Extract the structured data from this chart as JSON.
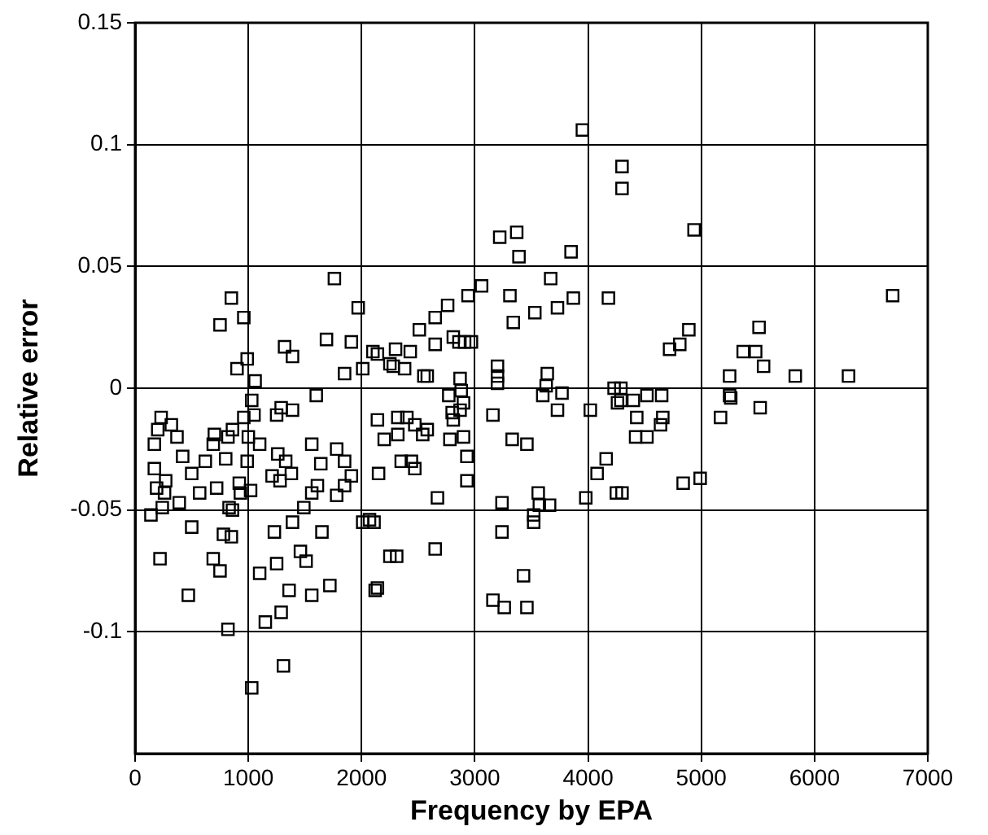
{
  "chart_data": {
    "type": "scatter",
    "xlabel": "Frequency by EPA",
    "ylabel": "Relative error",
    "xlim": [
      0,
      7000
    ],
    "xticks": [
      0,
      1000,
      2000,
      3000,
      4000,
      5000,
      6000,
      7000
    ],
    "ylim": [
      -0.15,
      0.15
    ],
    "yticks": [
      -0.1,
      -0.05,
      0,
      0.05,
      0.1,
      0.15
    ],
    "grid": true,
    "marker": "square",
    "legend": false,
    "series": [
      {
        "color": "#000000",
        "x": [
          4936,
          4300,
          4300,
          6690,
          5510,
          4890,
          4810,
          4720,
          5370,
          5480,
          5550,
          5250,
          5830,
          6300,
          5250,
          5260,
          5520,
          5170,
          4290,
          4290,
          4400,
          4520,
          4650,
          4430,
          4660,
          4640,
          4420,
          4520,
          4840,
          4990,
          4300,
          3850,
          3390,
          3220,
          3370,
          3060,
          2940,
          2760,
          2650,
          2510,
          2650,
          2810,
          2860,
          2910,
          2970,
          2300,
          2430,
          2250,
          2380,
          2550,
          2580,
          2870,
          2140,
          3310,
          3340,
          3530,
          3670,
          3730,
          3870,
          4180,
          3200,
          3200,
          3200,
          3640,
          3630,
          3600,
          3770,
          3730,
          4020,
          4230,
          4260,
          3160,
          3330,
          3460,
          4160,
          4080,
          4250,
          3980,
          3560,
          3570,
          3660,
          3240,
          3520,
          2670,
          2930,
          2930,
          2900,
          2780,
          2900,
          2880,
          2770,
          2870,
          2800,
          2810,
          2320,
          2400,
          2470,
          2580,
          2320,
          2540,
          2350,
          2440,
          2470,
          2150,
          2200,
          3240,
          3520,
          2310,
          2650,
          2140,
          3430,
          3160,
          3260,
          3460,
          140,
          220,
          500,
          780,
          850,
          690,
          750,
          470,
          820,
          1030,
          1310,
          1230,
          1250,
          1100,
          1360,
          1560,
          1720,
          1290,
          1150,
          2120,
          1390,
          1460,
          1510,
          1650,
          1490,
          2010,
          2070,
          830,
          860,
          240,
          390,
          2250,
          1760,
          850,
          960,
          750,
          1970,
          1690,
          1910,
          1320,
          1390,
          990,
          900,
          1060,
          1850,
          2010,
          2100,
          1600,
          1030,
          1290,
          1250,
          1390,
          1050,
          960,
          860,
          820,
          230,
          320,
          370,
          200,
          170,
          700,
          690,
          800,
          1000,
          990,
          1100,
          1260,
          1330,
          1560,
          1640,
          1780,
          1850,
          1910,
          1850,
          1560,
          1610,
          1780,
          1210,
          1280,
          1380,
          1020,
          920,
          930,
          720,
          620,
          500,
          420,
          170,
          270,
          190,
          260,
          570,
          2280,
          2140,
          2110,
          3950
        ],
        "values": [
          0.065,
          0.091,
          0.082,
          0.038,
          0.025,
          0.024,
          0.018,
          0.016,
          0.015,
          0.015,
          0.009,
          0.005,
          0.005,
          0.005,
          -0.003,
          -0.004,
          -0.008,
          -0.012,
          0.0,
          -0.005,
          -0.005,
          -0.003,
          -0.003,
          -0.012,
          -0.012,
          -0.015,
          -0.02,
          -0.02,
          -0.039,
          -0.037,
          -0.043,
          0.056,
          0.054,
          0.062,
          0.064,
          0.042,
          0.038,
          0.034,
          0.029,
          0.024,
          0.018,
          0.021,
          0.019,
          0.019,
          0.019,
          0.016,
          0.015,
          0.01,
          0.008,
          0.005,
          0.005,
          0.004,
          0.014,
          0.038,
          0.027,
          0.031,
          0.045,
          0.033,
          0.037,
          0.037,
          0.009,
          0.005,
          0.002,
          0.006,
          0.001,
          -0.003,
          -0.002,
          -0.009,
          -0.009,
          0.0,
          -0.006,
          -0.011,
          -0.021,
          -0.023,
          -0.029,
          -0.035,
          -0.043,
          -0.045,
          -0.043,
          -0.048,
          -0.048,
          -0.047,
          -0.052,
          -0.045,
          -0.028,
          -0.038,
          -0.02,
          -0.021,
          -0.006,
          -0.001,
          -0.003,
          -0.009,
          -0.01,
          -0.013,
          -0.012,
          -0.012,
          -0.015,
          -0.017,
          -0.019,
          -0.019,
          -0.03,
          -0.03,
          -0.033,
          -0.035,
          -0.021,
          -0.059,
          -0.055,
          -0.069,
          -0.066,
          -0.082,
          -0.077,
          -0.087,
          -0.09,
          -0.09,
          -0.052,
          -0.07,
          -0.057,
          -0.06,
          -0.061,
          -0.07,
          -0.075,
          -0.085,
          -0.099,
          -0.123,
          -0.114,
          -0.059,
          -0.072,
          -0.076,
          -0.083,
          -0.085,
          -0.081,
          -0.092,
          -0.096,
          -0.083,
          -0.055,
          -0.067,
          -0.071,
          -0.059,
          -0.049,
          -0.055,
          -0.054,
          -0.049,
          -0.05,
          -0.049,
          -0.047,
          -0.069,
          0.045,
          0.037,
          0.029,
          0.026,
          0.033,
          0.02,
          0.019,
          0.017,
          0.013,
          0.012,
          0.008,
          0.003,
          0.006,
          0.008,
          0.015,
          -0.003,
          -0.005,
          -0.008,
          -0.011,
          -0.009,
          -0.011,
          -0.012,
          -0.017,
          -0.02,
          -0.012,
          -0.015,
          -0.02,
          -0.017,
          -0.023,
          -0.019,
          -0.023,
          -0.029,
          -0.02,
          -0.03,
          -0.023,
          -0.027,
          -0.03,
          -0.023,
          -0.031,
          -0.025,
          -0.03,
          -0.036,
          -0.04,
          -0.043,
          -0.04,
          -0.044,
          -0.036,
          -0.038,
          -0.035,
          -0.042,
          -0.039,
          -0.043,
          -0.041,
          -0.03,
          -0.035,
          -0.028,
          -0.033,
          -0.038,
          -0.041,
          -0.043,
          -0.043,
          0.009,
          -0.013,
          -0.055,
          0.106
        ]
      }
    ]
  }
}
